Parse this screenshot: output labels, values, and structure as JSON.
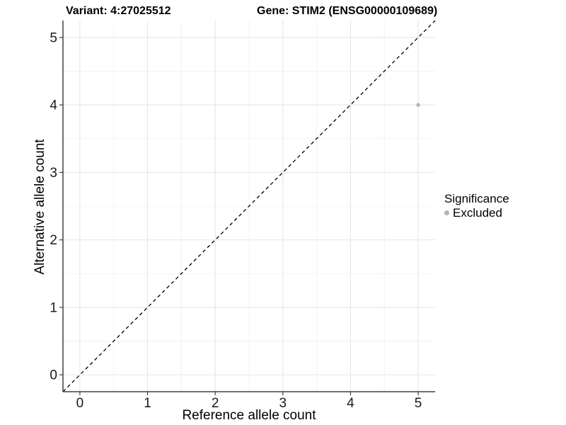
{
  "chart_data": {
    "type": "scatter",
    "title_parts": {
      "variant": "Variant: 4:27025512",
      "gene": "Gene: STIM2 (ENSG00000109689)"
    },
    "xlabel": "Reference allele count",
    "ylabel": "Alternative allele count",
    "xlim": [
      -0.25,
      5.25
    ],
    "ylim": [
      -0.25,
      5.25
    ],
    "xticks": [
      0,
      1,
      2,
      3,
      4,
      5
    ],
    "yticks": [
      0,
      1,
      2,
      3,
      4,
      5
    ],
    "grid": {
      "major": true,
      "minor": true,
      "minor_at_midpoints": true
    },
    "points": [
      {
        "x": 5,
        "y": 4,
        "significance": "Excluded"
      }
    ],
    "identity_line": {
      "slope": 1,
      "intercept": 0,
      "style": "dashed",
      "color": "#000000"
    },
    "legend": {
      "title": "Significance",
      "position": "right",
      "entries": [
        {
          "label": "Excluded",
          "color": "#b5b5b5"
        }
      ]
    },
    "colors": {
      "point": "#b5b5b5",
      "grid_major": "#e6e6e6",
      "grid_minor": "#f0f0f0",
      "axis_line": "#404040",
      "tick_text": "#1a1a1a",
      "background": "#ffffff"
    }
  }
}
